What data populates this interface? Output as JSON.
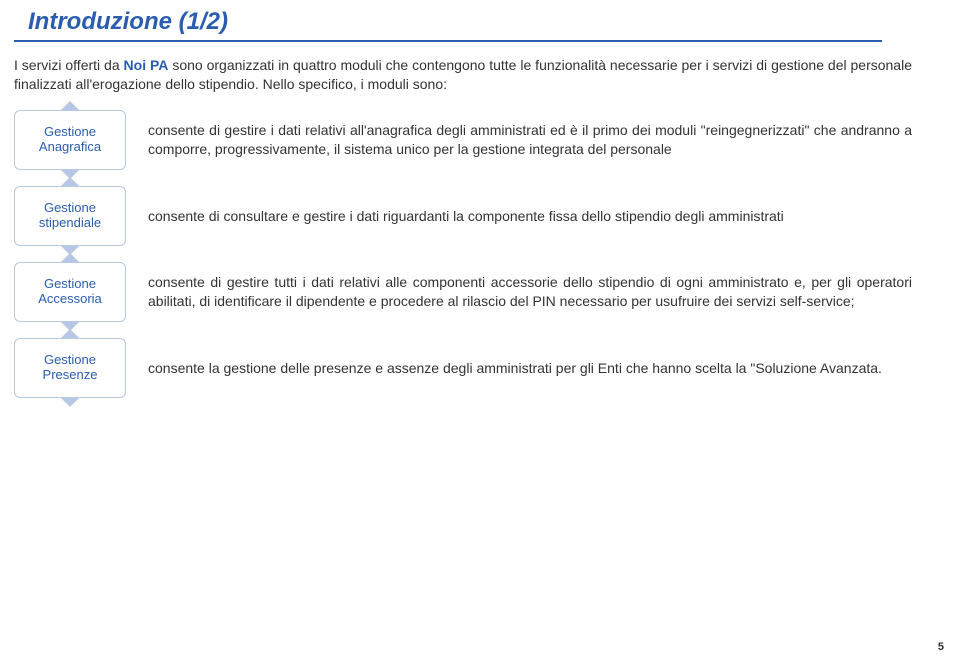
{
  "title": "Introduzione (1/2)",
  "intro": {
    "prefix": "I servizi offerti da ",
    "brand": "Noi PA",
    "mid": " sono organizzati in quattro moduli che contengono tutte le funzionalità necessarie per i servizi di gestione del personale finalizzati all'erogazione dello stipendio. Nello specifico, i moduli sono:"
  },
  "sections": [
    {
      "badge_l1": "Gestione",
      "badge_l2": "Anagrafica",
      "desc": "consente di gestire i dati relativi all'anagrafica degli amministrati ed è il primo dei moduli \"reingegnerizzati\" che andranno a comporre, progressivamente, il sistema unico per la gestione integrata del personale"
    },
    {
      "badge_l1": "Gestione",
      "badge_l2": "stipendiale",
      "desc": "consente di consultare e gestire i dati riguardanti la componente fissa dello stipendio degli amministrati"
    },
    {
      "badge_l1": "Gestione",
      "badge_l2": "Accessoria",
      "desc": "consente di gestire tutti i dati relativi alle componenti accessorie dello stipendio di ogni amministrato e, per gli operatori abilitati, di identificare il dipendente e procedere al rilascio del PIN necessario per usufruire dei servizi self-service;"
    },
    {
      "badge_l1": "Gestione",
      "badge_l2": "Presenze",
      "desc": "consente la gestione delle presenze e assenze degli amministrati per gli Enti che hanno scelta la \"Soluzione Avanzata."
    }
  ],
  "page_number": "5",
  "colors": {
    "heading": "#2a5db0",
    "badge_border": "#b7c7e4",
    "text": "#333333",
    "background": "#ffffff"
  },
  "typography": {
    "title_fontsize_pt": 18,
    "body_fontsize_pt": 11,
    "badge_fontsize_pt": 10,
    "font_family": "Verdana"
  }
}
